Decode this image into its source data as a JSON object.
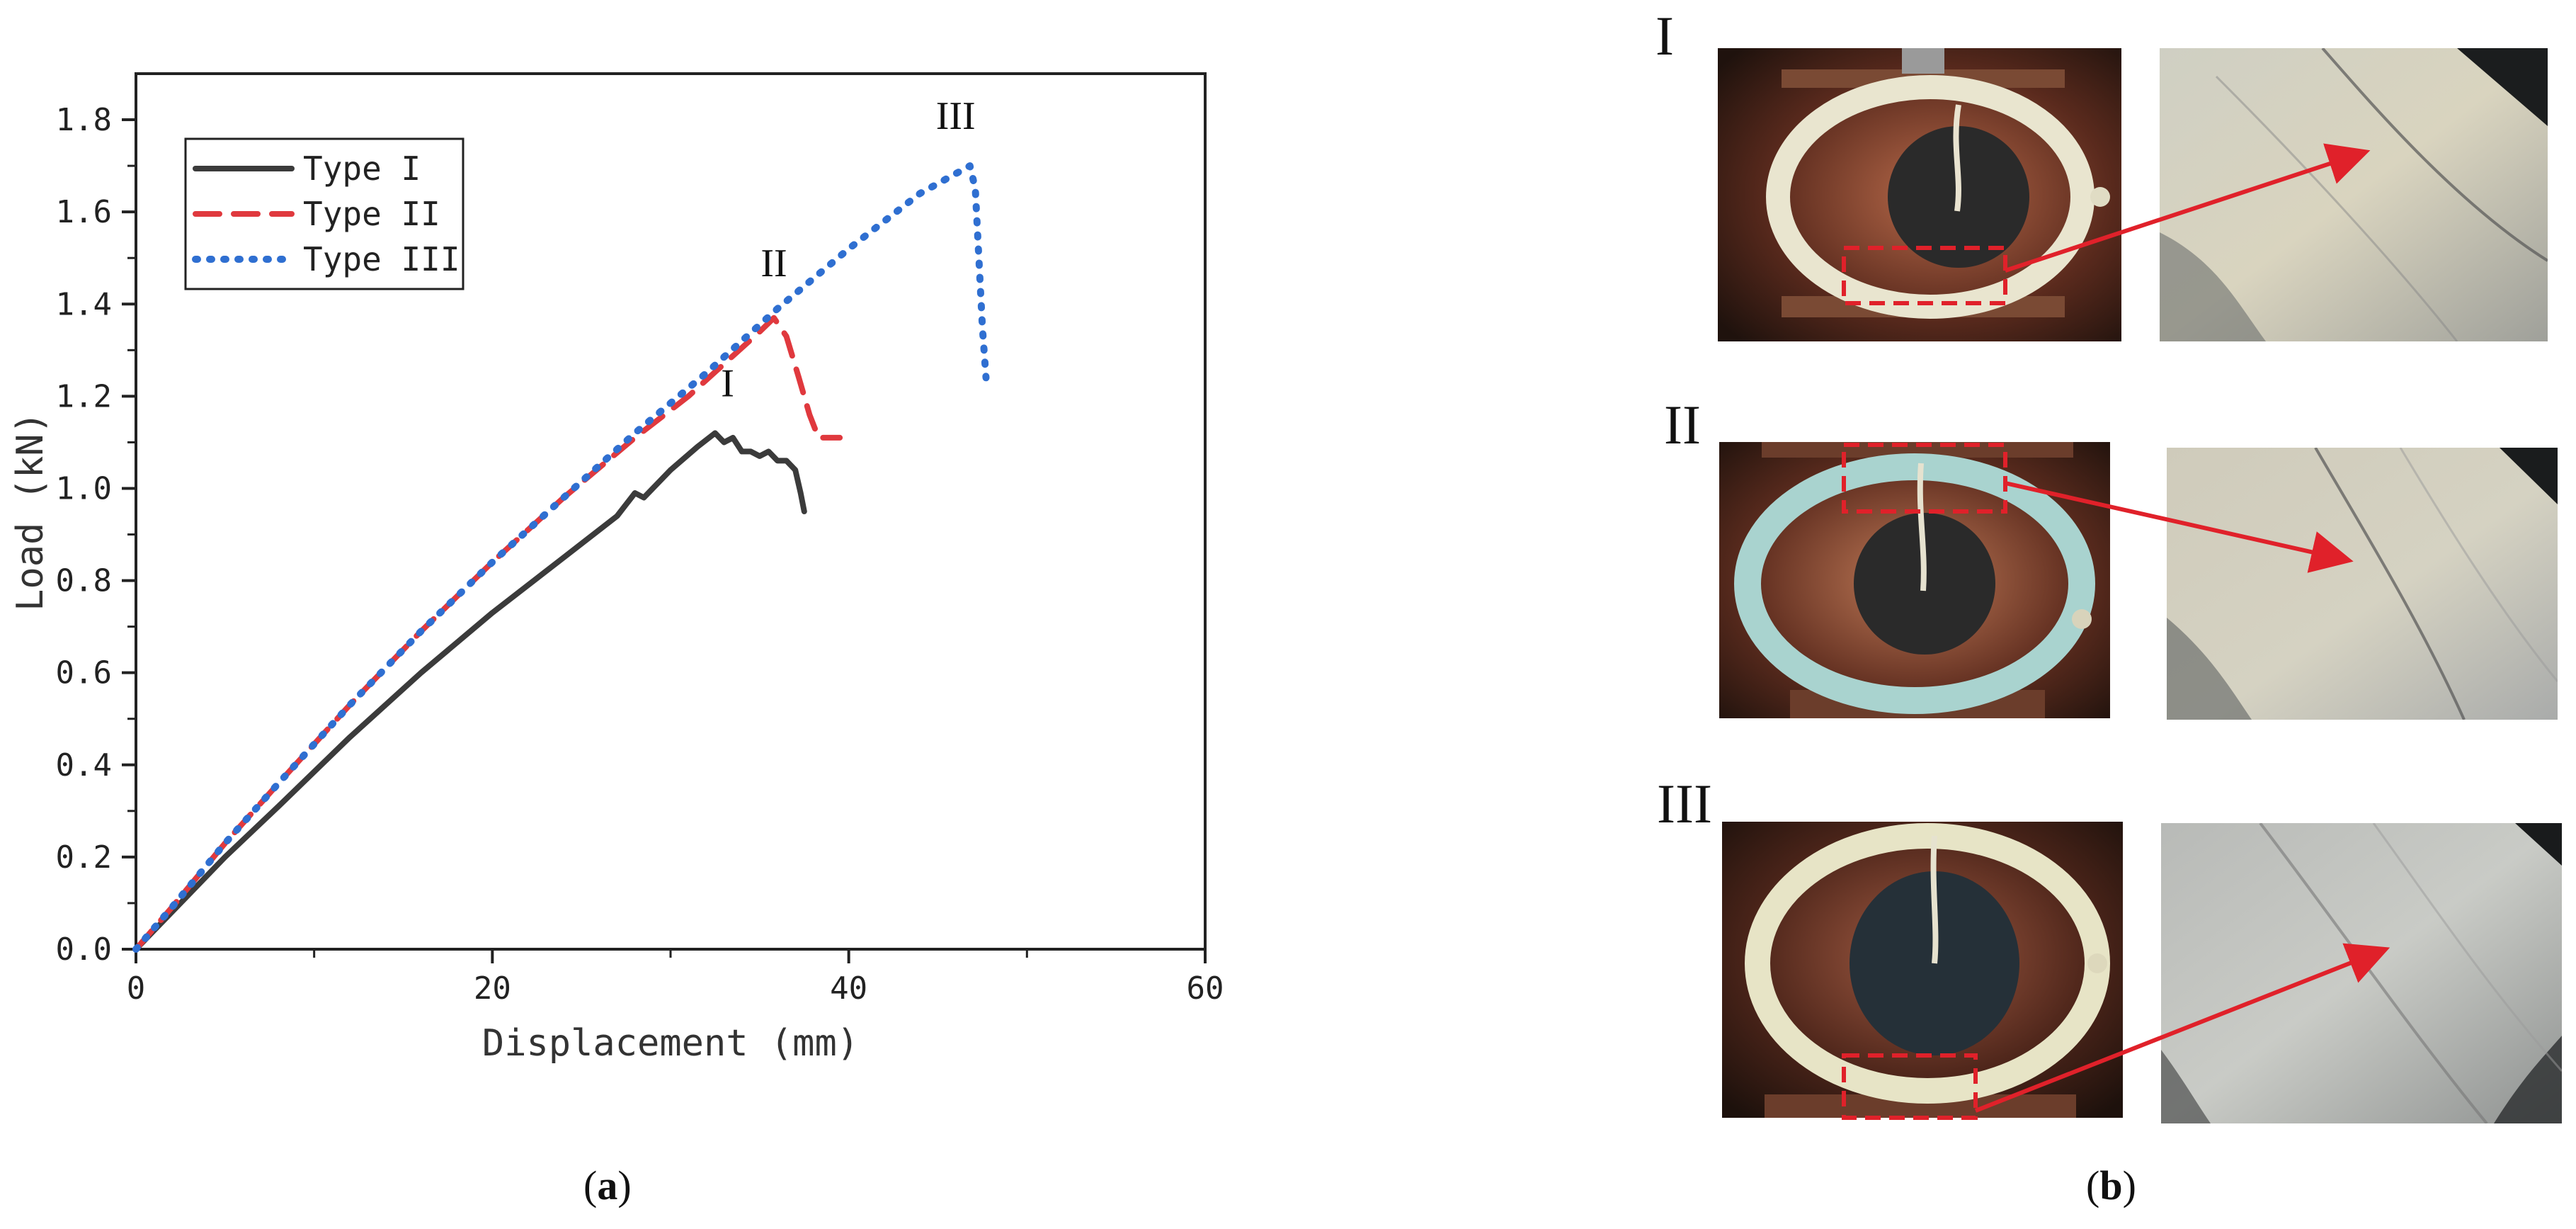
{
  "chart_data": {
    "type": "line",
    "title": "",
    "xlabel": "Displacement (mm)",
    "ylabel": "Load (kN)",
    "xlim": [
      0,
      60
    ],
    "ylim": [
      0,
      1.9
    ],
    "xticks": [
      "0",
      "20",
      "40",
      "60"
    ],
    "yticks": [
      "0.0",
      "0.2",
      "0.4",
      "0.6",
      "0.8",
      "1.0",
      "1.2",
      "1.4",
      "1.6",
      "1.8"
    ],
    "grid": false,
    "legend_position": "top-left",
    "series": [
      {
        "name": "Type I",
        "color": "#3b3b3b",
        "style": "solid",
        "x": [
          0,
          2,
          5,
          8,
          12,
          16,
          20,
          24,
          27,
          28,
          28.5,
          30,
          31.5,
          32.5,
          33,
          33.5,
          34,
          34.5,
          35,
          35.5,
          36,
          36.5,
          37,
          37.3,
          37.5
        ],
        "y": [
          0,
          0.08,
          0.2,
          0.31,
          0.46,
          0.6,
          0.73,
          0.85,
          0.94,
          0.99,
          0.98,
          1.04,
          1.09,
          1.12,
          1.1,
          1.11,
          1.08,
          1.08,
          1.07,
          1.08,
          1.06,
          1.06,
          1.04,
          0.99,
          0.95
        ]
      },
      {
        "name": "Type II",
        "color": "#e0393e",
        "style": "dashed",
        "x": [
          0,
          2,
          5,
          8,
          12,
          16,
          20,
          24,
          28,
          31,
          33,
          35,
          35.8,
          36.5,
          37.2,
          37.8,
          38.3,
          38.8,
          39.5
        ],
        "y": [
          0,
          0.09,
          0.23,
          0.36,
          0.53,
          0.69,
          0.84,
          0.98,
          1.11,
          1.2,
          1.27,
          1.34,
          1.37,
          1.33,
          1.24,
          1.16,
          1.11,
          1.11,
          1.11
        ]
      },
      {
        "name": "Type III",
        "color": "#2f6fd1",
        "style": "dotted",
        "x": [
          0,
          2,
          5,
          8,
          12,
          16,
          20,
          24,
          28,
          32,
          36,
          40,
          44,
          46.8,
          47.1,
          47.3,
          47.5,
          47.7
        ],
        "y": [
          0,
          0.09,
          0.23,
          0.36,
          0.53,
          0.69,
          0.84,
          0.98,
          1.12,
          1.25,
          1.39,
          1.52,
          1.64,
          1.7,
          1.65,
          1.5,
          1.35,
          1.24
        ]
      }
    ],
    "annotations": [
      {
        "text": "I",
        "x": 33.2,
        "y": 1.2
      },
      {
        "text": "II",
        "x": 35.8,
        "y": 1.46
      },
      {
        "text": "III",
        "x": 46.0,
        "y": 1.78
      }
    ]
  },
  "panels": {
    "a_label": "a",
    "b_label": "b",
    "rows": [
      {
        "label": "I"
      },
      {
        "label": "II"
      },
      {
        "label": "III"
      }
    ]
  }
}
